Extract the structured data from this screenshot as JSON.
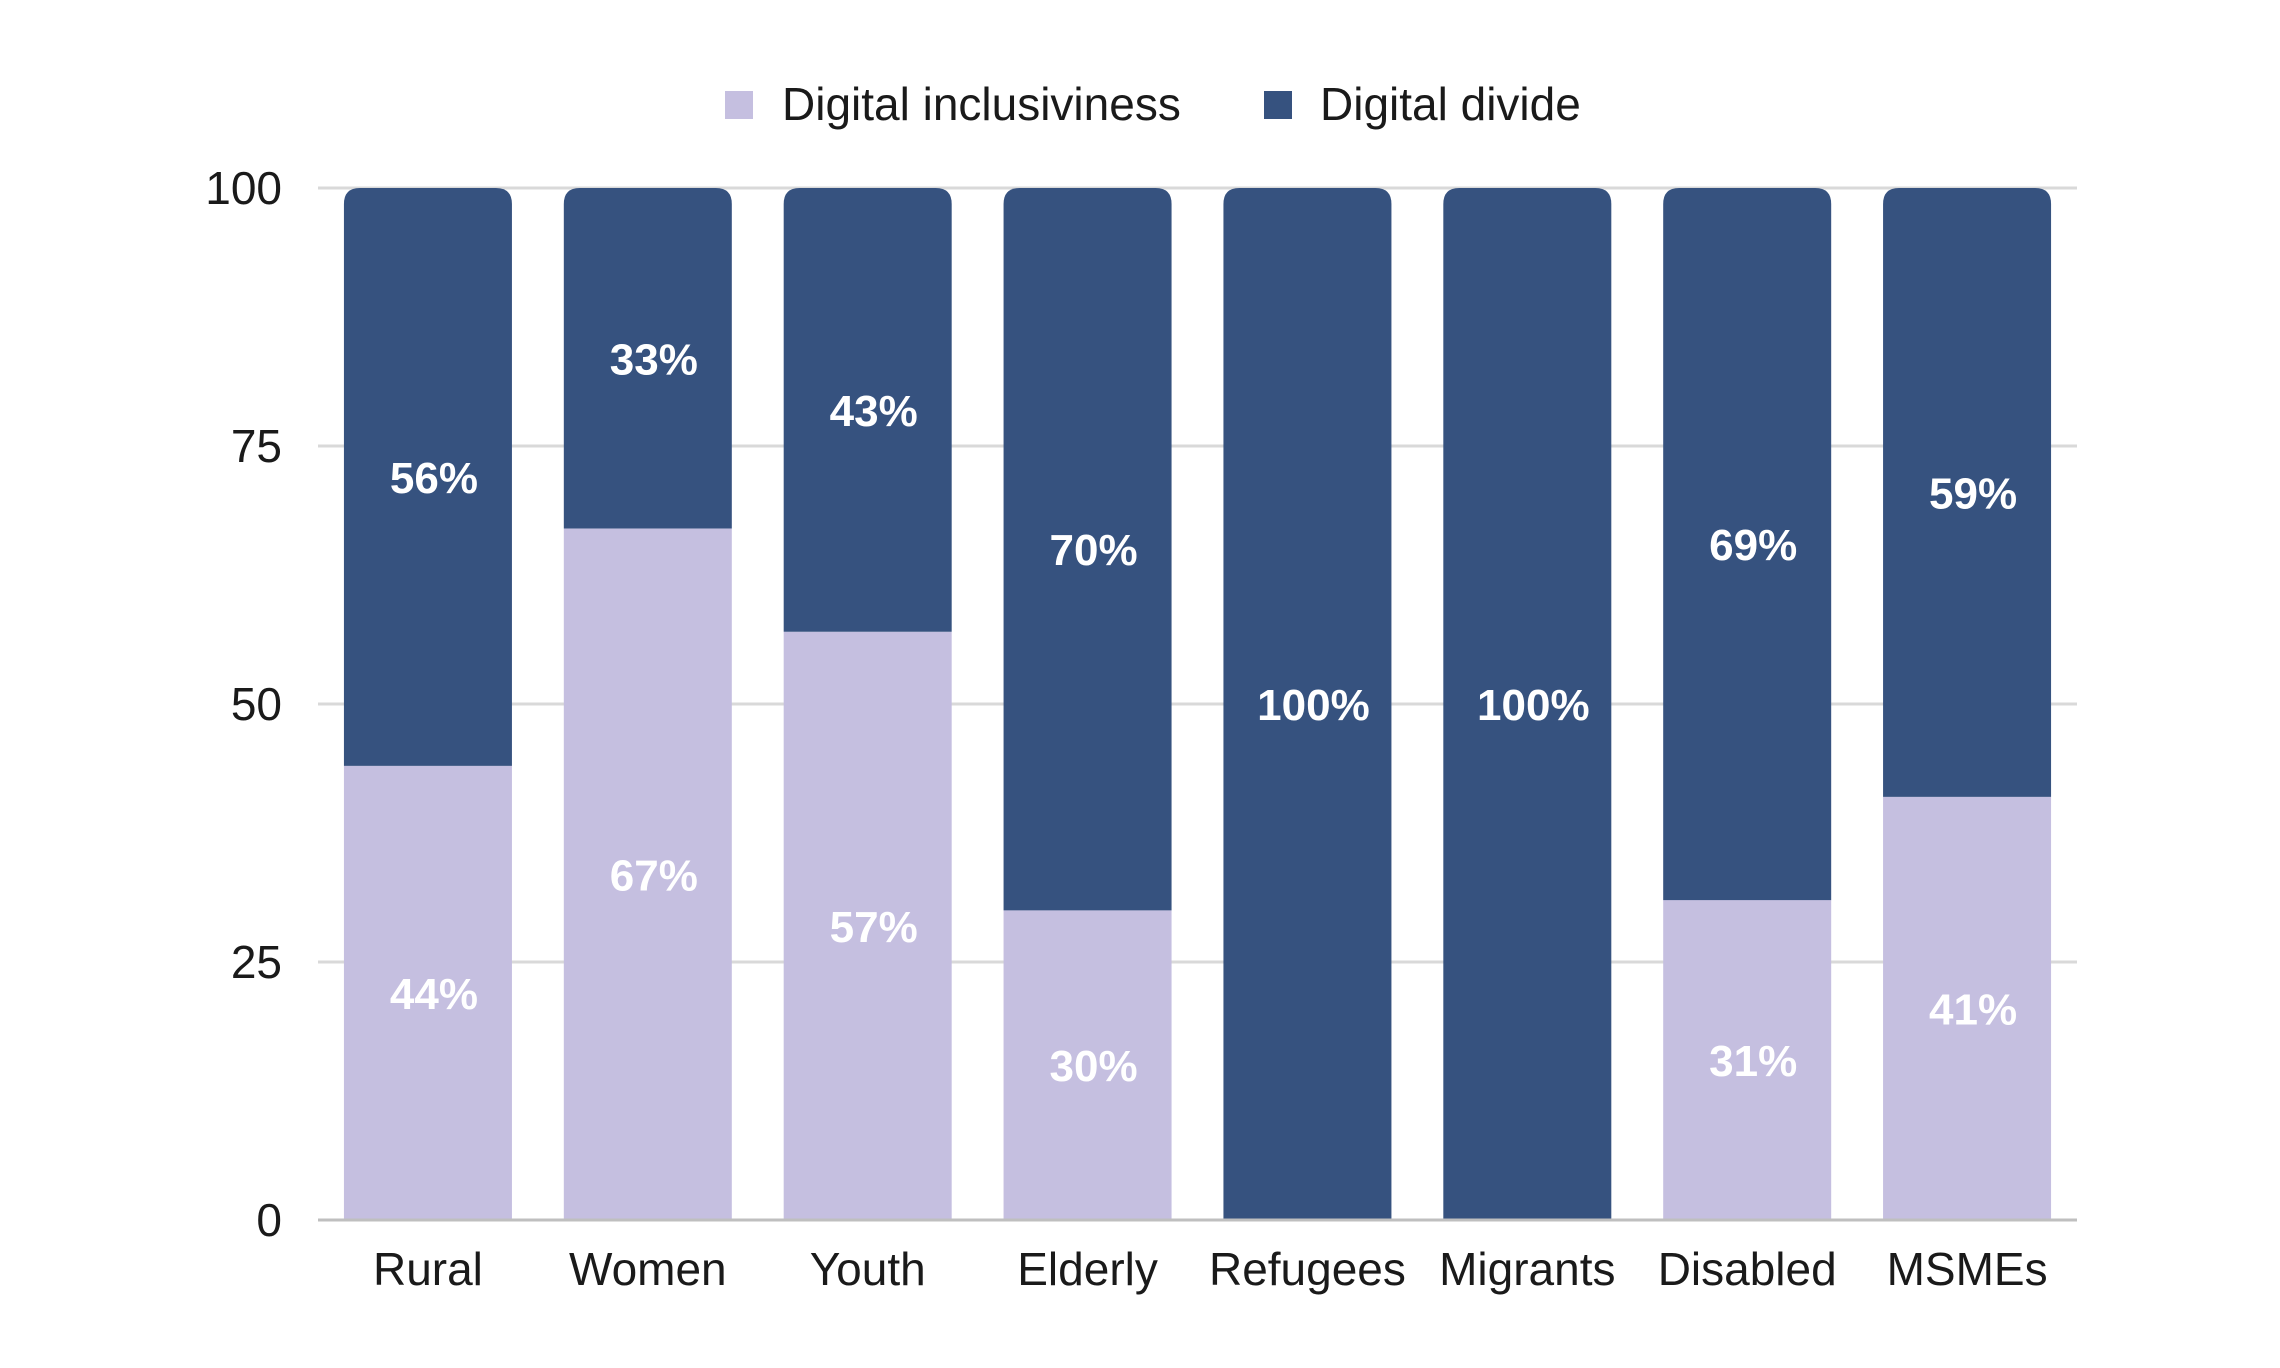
{
  "chart_data": {
    "type": "bar",
    "stacked": true,
    "title": "",
    "xlabel": "",
    "ylabel": "",
    "ylim": [
      0,
      100
    ],
    "yticks": [
      0,
      25,
      50,
      75,
      100
    ],
    "grid": true,
    "legend_position": "top-center",
    "categories": [
      "Rural",
      "Women",
      "Youth",
      "Elderly",
      "Refugees",
      "Migrants",
      "Disabled",
      "MSMEs"
    ],
    "series": [
      {
        "name": "Digital inclusiviness",
        "color": "#c5bfe0",
        "values": [
          44,
          67,
          57,
          30,
          0,
          0,
          31,
          41
        ],
        "labels": [
          "44%",
          "67%",
          "57%",
          "30%",
          "",
          "",
          "31%",
          "41%"
        ]
      },
      {
        "name": "Digital divide",
        "color": "#36527f",
        "values": [
          56,
          33,
          43,
          70,
          100,
          100,
          69,
          59
        ],
        "labels": [
          "56%",
          "33%",
          "43%",
          "70%",
          "100%",
          "100%",
          "69%",
          "59%"
        ]
      }
    ]
  }
}
